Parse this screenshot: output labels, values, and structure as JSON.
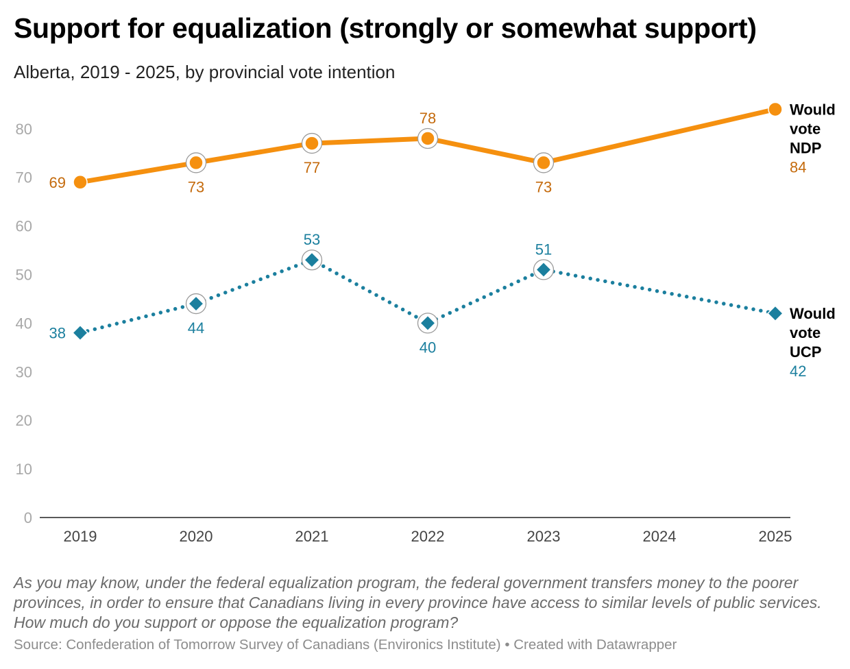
{
  "title": "Support for equalization (strongly or somewhat support)",
  "subtitle": "Alberta, 2019 - 2025, by provincial vote intention",
  "note": "As you may know, under the federal equalization program, the federal government transfers money to the poorer provinces, in order to ensure that Canadians living in every province have access to similar levels of public services. How much do you support or oppose the equalization program?",
  "source": "Source: Confederation of Tomorrow Survey of Canadians (Environics Institute) • Created with Datawrapper",
  "chart_data": {
    "type": "line",
    "title": "Support for equalization (strongly or somewhat support)",
    "subtitle": "Alberta, 2019 - 2025, by provincial vote intention",
    "x": [
      "2019",
      "2020",
      "2021",
      "2022",
      "2023",
      "2024",
      "2025"
    ],
    "ylim": [
      0,
      85
    ],
    "yticks": [
      0,
      10,
      20,
      30,
      40,
      50,
      60,
      70,
      80
    ],
    "grid": false,
    "legend": "direct labels at line ends (right)",
    "series": [
      {
        "name_lines": [
          "Would",
          "vote",
          "NDP"
        ],
        "values": [
          69,
          73,
          77,
          78,
          73,
          null,
          84
        ],
        "labels": [
          "69",
          "73",
          "77",
          "78",
          "73",
          "",
          "84"
        ],
        "label_pos": [
          "left",
          "below",
          "below",
          "above",
          "below",
          "",
          "end"
        ],
        "highlight": [
          false,
          true,
          true,
          true,
          true,
          false,
          false
        ],
        "color": "#f5900f",
        "label_color": "#c46a0c",
        "style": "solid",
        "marker": "circle"
      },
      {
        "name_lines": [
          "Would",
          "vote",
          "UCP"
        ],
        "values": [
          38,
          44,
          53,
          40,
          51,
          null,
          42
        ],
        "labels": [
          "38",
          "44",
          "53",
          "40",
          "51",
          "",
          "42"
        ],
        "label_pos": [
          "left",
          "below",
          "above",
          "below",
          "above",
          "",
          "end"
        ],
        "highlight": [
          false,
          true,
          true,
          true,
          true,
          false,
          false
        ],
        "color": "#1b7f9e",
        "label_color": "#1b7f9e",
        "style": "dotted",
        "marker": "diamond"
      }
    ]
  }
}
